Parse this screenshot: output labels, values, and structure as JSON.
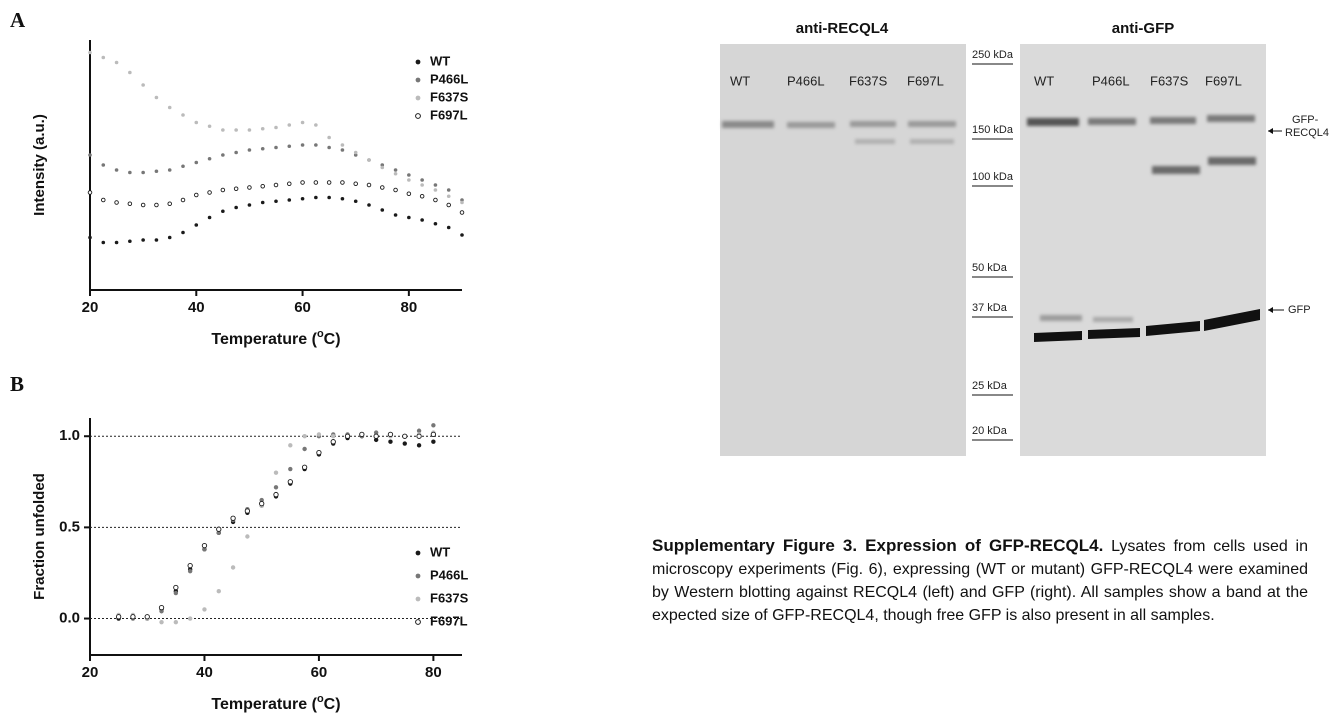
{
  "chart_data": [
    {
      "type": "scatter",
      "panel": "A",
      "y_label": "Intensity (a.u.)",
      "x_label_parts": [
        "Temperature (",
        "o",
        "C)"
      ],
      "x": [
        20,
        22.5,
        25,
        27.5,
        30,
        32.5,
        35,
        37.5,
        40,
        42.5,
        45,
        47.5,
        50,
        52.5,
        55,
        57.5,
        60,
        62.5,
        65,
        67.5,
        70,
        72.5,
        75,
        77.5,
        80,
        82.5,
        85,
        87.5,
        90
      ],
      "xlim": [
        20,
        90
      ],
      "xticks": [
        20,
        40,
        60,
        80
      ],
      "ylim": [
        0,
        100
      ],
      "legend": "upper right",
      "series": [
        {
          "name": "WT",
          "color": "#1a1a1a",
          "marker": "filled",
          "values": [
            21,
            19,
            19,
            19.5,
            20,
            20,
            21,
            23,
            26,
            29,
            31.5,
            33,
            34,
            35,
            35.5,
            36,
            36.5,
            37,
            37,
            36.5,
            35.5,
            34,
            32,
            30,
            29,
            28,
            26.5,
            25,
            22
          ]
        },
        {
          "name": "P466L",
          "color": "#777777",
          "marker": "filled",
          "values": [
            54,
            50,
            48,
            47,
            47,
            47.5,
            48,
            49.5,
            51,
            52.5,
            54,
            55,
            56,
            56.5,
            57,
            57.5,
            58,
            58,
            57,
            56,
            54,
            52,
            50,
            48,
            46,
            44,
            42,
            40,
            36
          ]
        },
        {
          "name": "F637S",
          "color": "#bbbbbb",
          "marker": "filled",
          "values": [
            95,
            93,
            91,
            87,
            82,
            77,
            73,
            70,
            67,
            65.5,
            64,
            64,
            64,
            64.5,
            65,
            66,
            67,
            66,
            61,
            58,
            55,
            52,
            49,
            46.5,
            44,
            42,
            40,
            37.5,
            35
          ]
        },
        {
          "name": "F697L",
          "color": "#1a1a1a",
          "marker": "open",
          "values": [
            39,
            36,
            35,
            34.5,
            34,
            34,
            34.5,
            36,
            38,
            39,
            40,
            40.5,
            41,
            41.5,
            42,
            42.5,
            43,
            43,
            43,
            43,
            42.5,
            42,
            41,
            40,
            38.5,
            37.5,
            36,
            34,
            31
          ]
        }
      ]
    },
    {
      "type": "scatter",
      "panel": "B",
      "y_label": "Fraction unfolded",
      "x_label_parts": [
        "Temperature (",
        "o",
        "C)"
      ],
      "x": [
        25,
        27.5,
        30,
        32.5,
        35,
        37.5,
        40,
        42.5,
        45,
        47.5,
        50,
        52.5,
        55,
        57.5,
        60,
        62.5,
        65,
        67.5,
        70,
        72.5,
        75,
        77.5,
        80
      ],
      "xlim": [
        20,
        85
      ],
      "xticks": [
        20,
        40,
        60,
        80
      ],
      "ylim": [
        -0.2,
        1.1
      ],
      "yticks": [
        {
          "value": 0,
          "label": "0.0"
        },
        {
          "value": 0.5,
          "label": "0.5"
        },
        {
          "value": 1,
          "label": "1.0"
        }
      ],
      "grid": true,
      "legend": "lower right",
      "series": [
        {
          "name": "WT",
          "color": "#1a1a1a",
          "marker": "filled",
          "values": [
            0,
            0.01,
            0,
            0.05,
            0.15,
            0.27,
            0.38,
            0.47,
            0.53,
            0.58,
            0.62,
            0.67,
            0.74,
            0.82,
            0.9,
            0.96,
            0.99,
            1.0,
            0.98,
            0.97,
            0.96,
            0.95,
            0.97
          ]
        },
        {
          "name": "P466L",
          "color": "#777777",
          "marker": "filled",
          "values": [
            0.01,
            0,
            0,
            0.04,
            0.14,
            0.26,
            0.38,
            0.47,
            0.54,
            0.6,
            0.65,
            0.72,
            0.82,
            0.93,
            1.0,
            1.01,
            1.01,
            1.0,
            1.02,
            1.01,
            1.0,
            1.03,
            1.06
          ]
        },
        {
          "name": "F637S",
          "color": "#bbbbbb",
          "marker": "filled",
          "values": [
            0.02,
            0.02,
            0,
            -0.02,
            -0.02,
            0,
            0.05,
            0.15,
            0.28,
            0.45,
            0.62,
            0.8,
            0.95,
            1.0,
            1.01,
            1.0,
            1.0,
            1.01,
            1.0,
            1.0,
            1.0,
            1.01,
            1.02
          ]
        },
        {
          "name": "F697L",
          "color": "#1a1a1a",
          "marker": "open",
          "values": [
            0.01,
            0.01,
            0.01,
            0.06,
            0.17,
            0.29,
            0.4,
            0.49,
            0.55,
            0.59,
            0.63,
            0.68,
            0.75,
            0.83,
            0.91,
            0.97,
            1.0,
            1.01,
            1.0,
            1.01,
            1.0,
            1.0,
            1.01
          ]
        }
      ]
    }
  ],
  "blot": {
    "panels": [
      {
        "title": "anti-RECQL4",
        "lanes": [
          "WT",
          "P466L",
          "F637S",
          "F697L"
        ]
      },
      {
        "title": "anti-GFP",
        "lanes": [
          "WT",
          "P466L",
          "F637S",
          "F697L"
        ]
      }
    ],
    "markers": [
      "250 kDa",
      "150 kDa",
      "100 kDa",
      "50 kDa",
      "37 kDa",
      "25 kDa",
      "20 kDa"
    ],
    "annotations": {
      "fusion": [
        "GFP-",
        "RECQL4"
      ],
      "free": "GFP"
    }
  },
  "caption": {
    "title": "Supplementary Figure 3. Expression of GFP-RECQL4.",
    "body": "Lysates from cells used in microscopy experiments (Fig. 6), expressing (WT or mutant) GFP-RECQL4 were examined by Western blotting against RECQL4 (left) and GFP (right). All samples show a band at the expected size of GFP-RECQL4, though free GFP is also present in all samples."
  }
}
